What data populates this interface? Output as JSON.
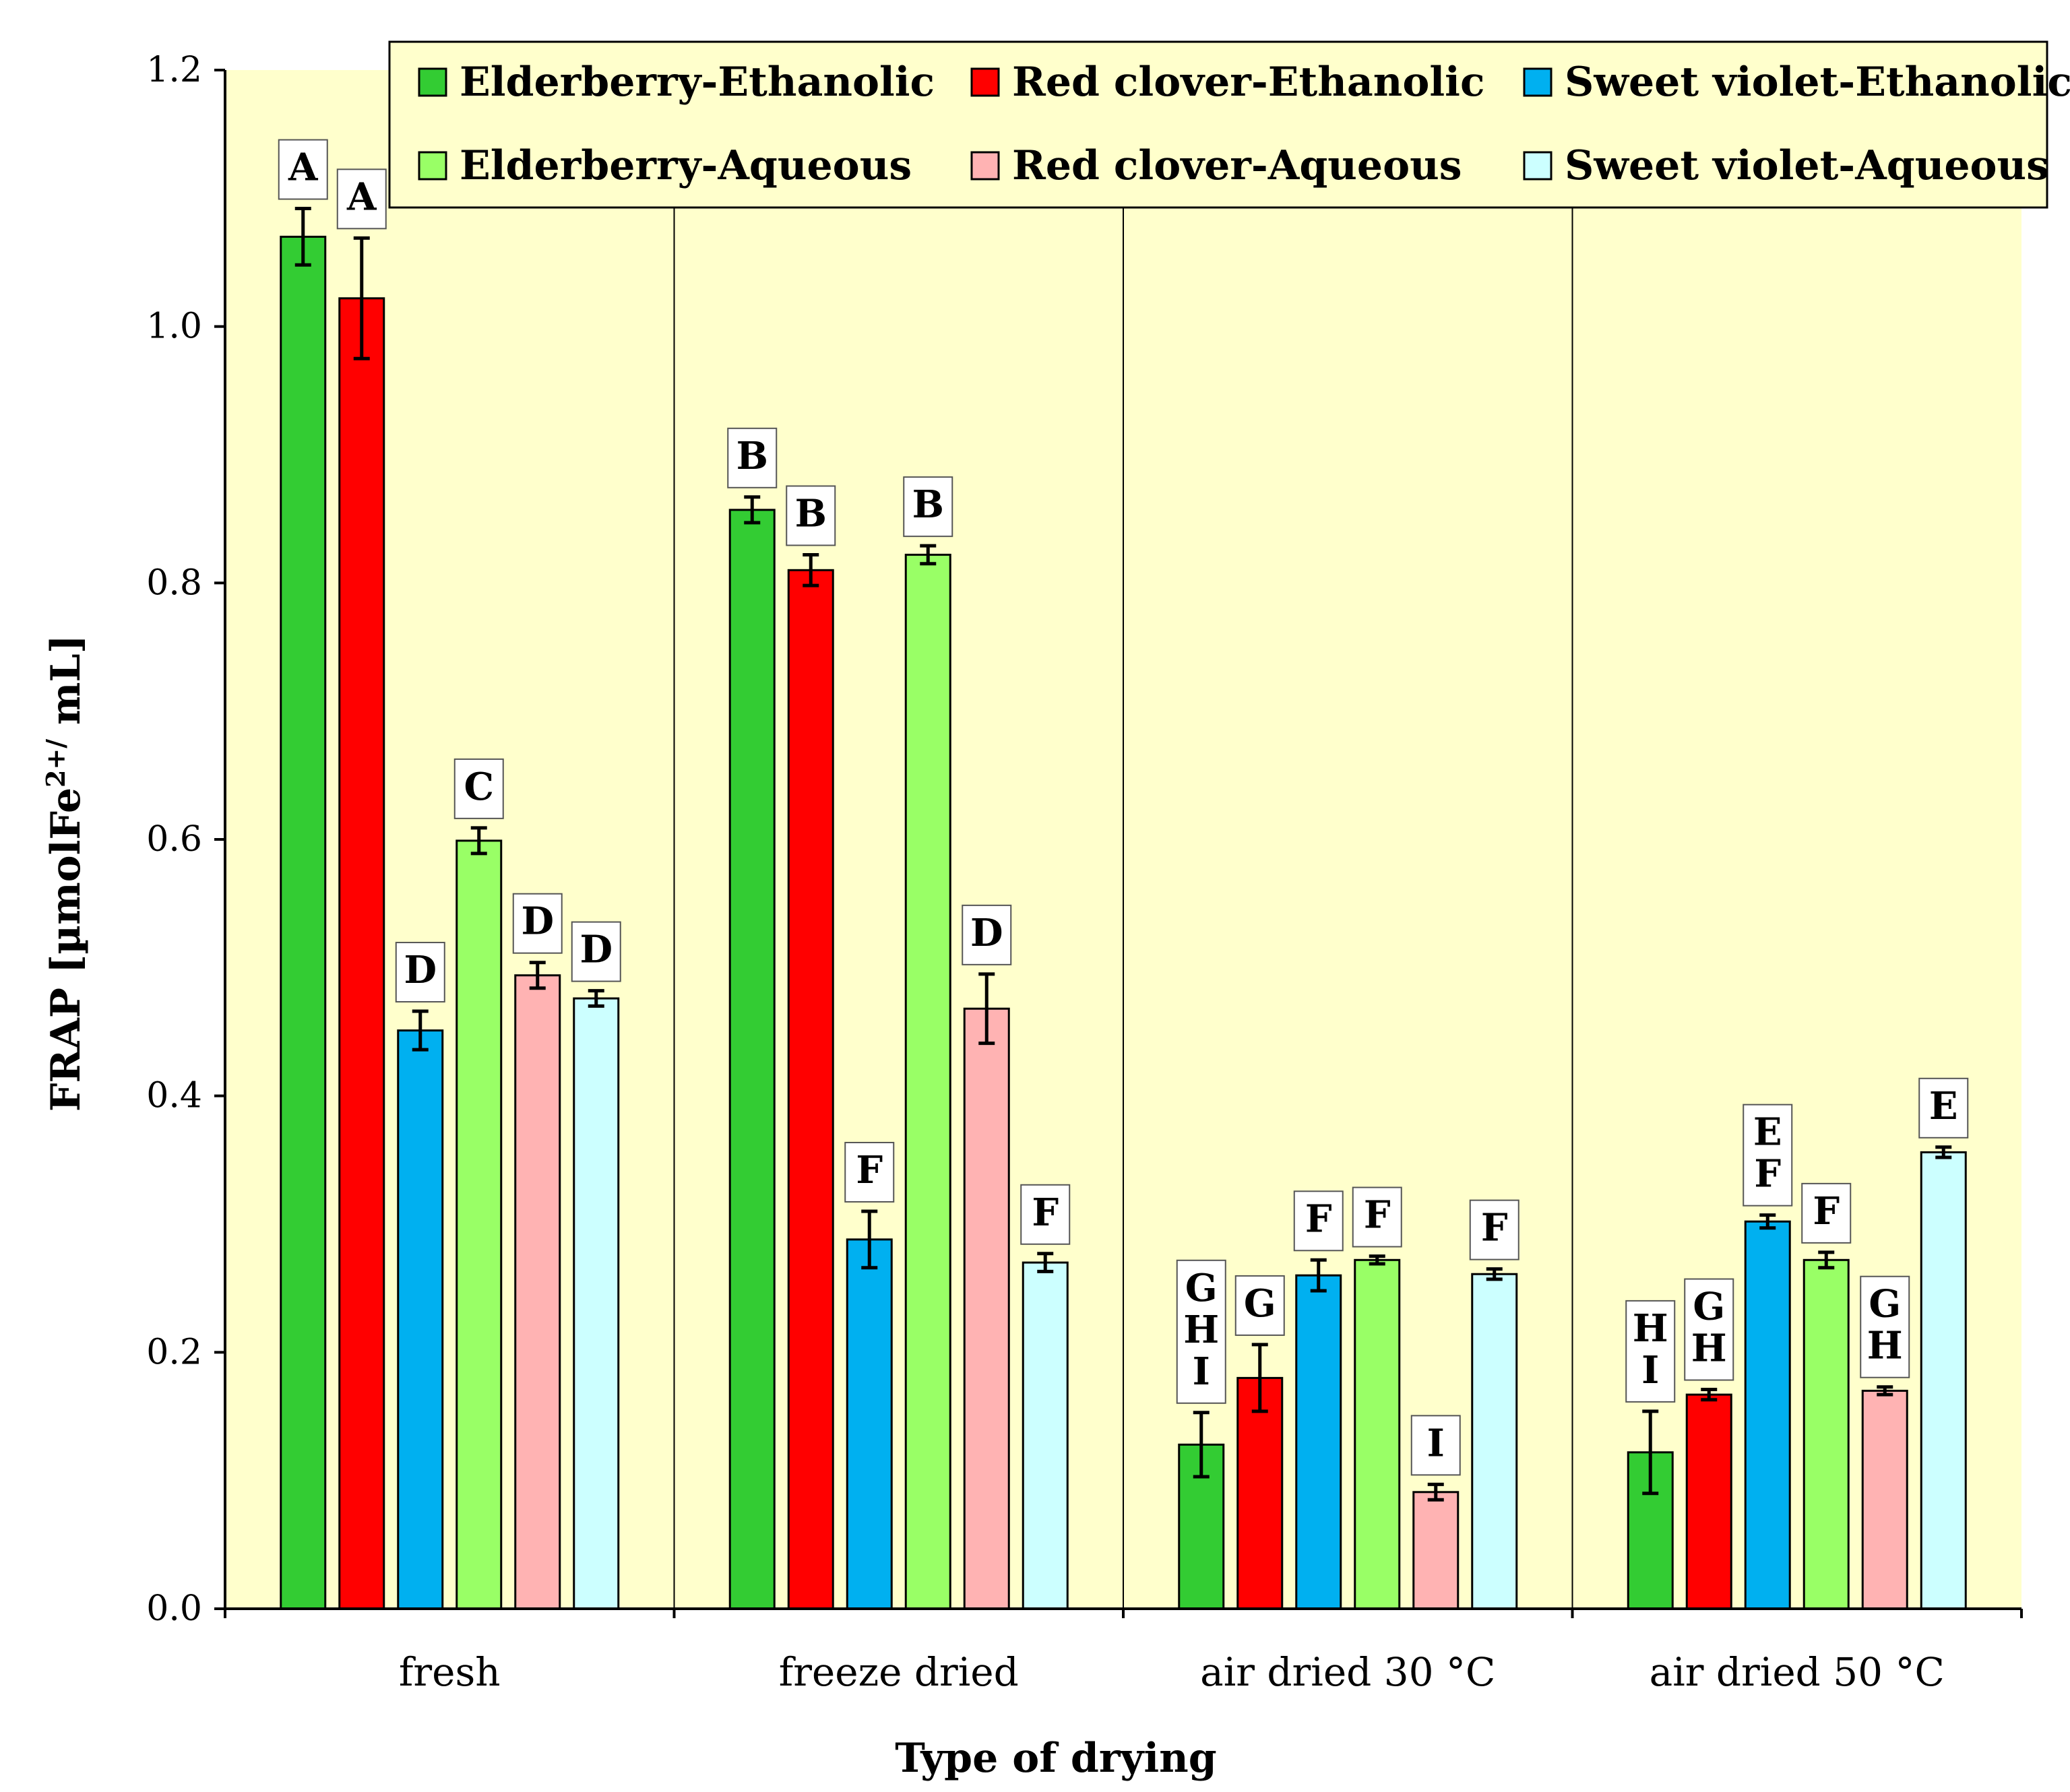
{
  "chart_data": {
    "type": "bar",
    "title": "",
    "xlabel": "Type of drying",
    "ylabel": "FRAP [µmolFe²⁺/ mL]",
    "ylabel_parts": {
      "base": "FRAP [µmolFe",
      "sup": "2+/",
      "tail": " mL]"
    },
    "ylim": [
      0,
      1.2
    ],
    "y_ticks": [
      "0.0",
      "0.2",
      "0.4",
      "0.6",
      "0.8",
      "1.0",
      "1.2"
    ],
    "y_tick_values": [
      0,
      0.2,
      0.4,
      0.6,
      0.8,
      1.0,
      1.2
    ],
    "categories": [
      "fresh",
      "freeze dried",
      "air dried 30 °C",
      "air dried 50 °C"
    ],
    "legend_position": "top",
    "series": [
      {
        "name": "Elderberry-Ethanolic",
        "color": "#33cc33",
        "values": [
          1.07,
          0.857,
          0.128,
          0.122
        ],
        "errors": [
          0.022,
          0.01,
          0.025,
          0.032
        ],
        "letters": [
          [
            "A"
          ],
          [
            "B"
          ],
          [
            "G",
            "H",
            "I"
          ],
          [
            "H",
            "I"
          ]
        ]
      },
      {
        "name": "Red clover-Ethanolic",
        "color": "#ff0000",
        "values": [
          1.022,
          0.81,
          0.18,
          0.167
        ],
        "errors": [
          0.047,
          0.012,
          0.026,
          0.004
        ],
        "letters": [
          [
            "A"
          ],
          [
            "B"
          ],
          [
            "G"
          ],
          [
            "G",
            "H"
          ]
        ]
      },
      {
        "name": "Sweet violet-Ethanolic",
        "color": "#00b0f0",
        "values": [
          0.451,
          0.288,
          0.26,
          0.302
        ],
        "errors": [
          0.015,
          0.022,
          0.012,
          0.005
        ],
        "letters": [
          [
            "D"
          ],
          [
            "F"
          ],
          [
            "F"
          ],
          [
            "E",
            "F"
          ]
        ]
      },
      {
        "name": "Elderberry-Aqueous",
        "color": "#99ff66",
        "values": [
          0.599,
          0.822,
          0.272,
          0.272
        ],
        "errors": [
          0.01,
          0.007,
          0.003,
          0.006
        ],
        "letters": [
          [
            "C"
          ],
          [
            "B"
          ],
          [
            "F"
          ],
          [
            "F"
          ]
        ]
      },
      {
        "name": "Red clover-Aqueous",
        "color": "#ffb3b3",
        "values": [
          0.494,
          0.468,
          0.091,
          0.17
        ],
        "errors": [
          0.01,
          0.027,
          0.006,
          0.003
        ],
        "letters": [
          [
            "D"
          ],
          [
            "D"
          ],
          [
            "I"
          ],
          [
            "G",
            "H"
          ]
        ]
      },
      {
        "name": "Sweet violet-Aqueous",
        "color": "#ccffff",
        "values": [
          0.476,
          0.27,
          0.261,
          0.356
        ],
        "errors": [
          0.006,
          0.007,
          0.004,
          0.004
        ],
        "letters": [
          [
            "D"
          ],
          [
            "F"
          ],
          [
            "F"
          ],
          [
            "E"
          ]
        ]
      }
    ],
    "plot_background": "#ffffcc",
    "grid": false
  }
}
